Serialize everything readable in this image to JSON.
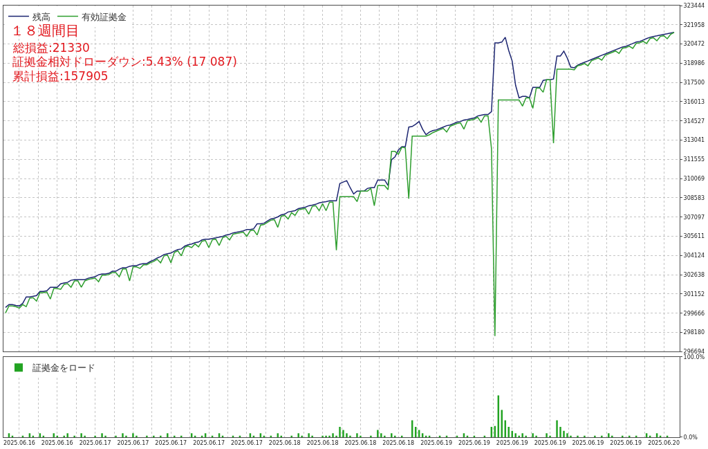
{
  "chart_data": [
    {
      "type": "line",
      "title": "１８週間目",
      "annotations": [
        "総損益:21330",
        "証拠金相対ドローダウン:5.43% (17 087)",
        "累計損益:157905"
      ],
      "categories": [
        null,
        null,
        null,
        null,
        "2025.06.16",
        null,
        null,
        null,
        null,
        null,
        null,
        null,
        null,
        null,
        null,
        "2025.06.16",
        null,
        null,
        null,
        null,
        null,
        null,
        null,
        null,
        null,
        null,
        "2025.06.17",
        null,
        null,
        null,
        null,
        null,
        null,
        null,
        null,
        null,
        null,
        "2025.06.17",
        null,
        null,
        null,
        null,
        null,
        null,
        null,
        null,
        null,
        null,
        "2025.06.17",
        null,
        null,
        null,
        null,
        null,
        null,
        null,
        null,
        null,
        null,
        "2025.06.17",
        null,
        null,
        null,
        null,
        null,
        null,
        null,
        null,
        null,
        null,
        "2025.06.17",
        null,
        null,
        null,
        null,
        null,
        null,
        null,
        null,
        null,
        null,
        "2025.06.18",
        null,
        null,
        null,
        null,
        null,
        null,
        null,
        null,
        null,
        null,
        "2025.06.18",
        null,
        null,
        null,
        null,
        null,
        null,
        null,
        null,
        null,
        null,
        "2025.06.18",
        null,
        null,
        null,
        null,
        null,
        null,
        null,
        null,
        null,
        null,
        "2025.06.18",
        null,
        null,
        null,
        null,
        null,
        null,
        null,
        null,
        null,
        null,
        "2025.06.19",
        null,
        null,
        null,
        null,
        null,
        null,
        null,
        null,
        null,
        null,
        "2025.06.19",
        null,
        null,
        null,
        null,
        null,
        null,
        null,
        null,
        null,
        null,
        "2025.06.19",
        null,
        null,
        null,
        null,
        null,
        null,
        null,
        null,
        null,
        null,
        "2025.06.19",
        null,
        null,
        null,
        null,
        null,
        null,
        null,
        null,
        null,
        null,
        "2025.06.19",
        null,
        null,
        null,
        null,
        null,
        null,
        null,
        null,
        null,
        null,
        "2025.06.19",
        null,
        null,
        null,
        null,
        null,
        null,
        null,
        null,
        null,
        null,
        "2025.06.20",
        null,
        null,
        null
      ],
      "series": [
        {
          "name": "残高",
          "color": "#1b2470",
          "values": [
            300110,
            300330,
            300330,
            300270,
            300220,
            300430,
            300920,
            300920,
            300970,
            301030,
            301350,
            301350,
            301400,
            301670,
            301670,
            301670,
            301940,
            302000,
            302050,
            302210,
            302260,
            302260,
            302260,
            302260,
            302370,
            302430,
            302480,
            302640,
            302700,
            302700,
            302750,
            302910,
            302910,
            303070,
            303180,
            303180,
            303290,
            303340,
            303340,
            303450,
            303500,
            303500,
            303660,
            303770,
            303930,
            304040,
            304200,
            304260,
            304310,
            304470,
            304580,
            304630,
            304850,
            304960,
            305010,
            305120,
            305170,
            305330,
            305390,
            305390,
            305440,
            305490,
            305550,
            305600,
            305710,
            305760,
            305870,
            305920,
            305980,
            306030,
            306140,
            306140,
            306190,
            306570,
            306570,
            306620,
            306790,
            306950,
            307000,
            307110,
            307270,
            307320,
            307490,
            307540,
            307590,
            307750,
            307810,
            307860,
            307970,
            308020,
            308080,
            308190,
            308240,
            308290,
            308350,
            308350,
            308350,
            309690,
            309800,
            309910,
            309370,
            308880,
            309100,
            309100,
            309100,
            309310,
            309370,
            309370,
            309960,
            309960,
            309960,
            309530,
            311520,
            311740,
            312280,
            312540,
            312540,
            314050,
            314100,
            314270,
            314480,
            313890,
            313460,
            313670,
            313780,
            313840,
            313940,
            314050,
            314160,
            314210,
            314320,
            314430,
            314480,
            314590,
            314640,
            314700,
            314750,
            314910,
            314970,
            315020,
            315020,
            315240,
            320560,
            320560,
            320620,
            320990,
            319970,
            319160,
            317280,
            316310,
            316420,
            316420,
            316310,
            317120,
            317120,
            317120,
            317660,
            317710,
            317710,
            317770,
            319540,
            319540,
            319920,
            319380,
            318680,
            318630,
            318840,
            318950,
            319060,
            319160,
            319270,
            319380,
            319490,
            319600,
            319700,
            319810,
            319920,
            320030,
            320130,
            320240,
            320290,
            320400,
            320510,
            320620,
            320670,
            320780,
            320890,
            320990,
            321050,
            321100,
            321160,
            321210,
            321260,
            321320,
            321370
          ]
        },
        {
          "name": "有効証拠金",
          "color": "#2e9e2e",
          "values": [
            299680,
            300230,
            300230,
            300170,
            300060,
            300330,
            300170,
            300820,
            300870,
            300600,
            301250,
            301250,
            301300,
            300760,
            301570,
            301570,
            301510,
            301900,
            301950,
            301670,
            302160,
            302160,
            301670,
            302160,
            302270,
            302330,
            302380,
            302100,
            302600,
            302600,
            302650,
            302810,
            302810,
            302480,
            303080,
            303080,
            302160,
            303240,
            303240,
            303130,
            303400,
            303400,
            303560,
            303670,
            303830,
            303560,
            304100,
            304160,
            303560,
            304370,
            304480,
            304100,
            304750,
            304860,
            304740,
            305020,
            304790,
            305230,
            305290,
            304740,
            305340,
            305390,
            304900,
            305500,
            305610,
            305330,
            305770,
            305820,
            305880,
            305930,
            305600,
            306040,
            306090,
            305710,
            306470,
            306520,
            306690,
            306850,
            306900,
            306300,
            307170,
            307220,
            306950,
            307440,
            307220,
            307650,
            307710,
            307760,
            307320,
            307920,
            307980,
            307590,
            308140,
            307590,
            308250,
            308250,
            304530,
            308670,
            308670,
            308670,
            308670,
            308670,
            308290,
            309100,
            309100,
            309100,
            309310,
            307970,
            309530,
            309530,
            309530,
            309210,
            312170,
            312170,
            311950,
            312490,
            312440,
            308510,
            313350,
            313350,
            313350,
            313350,
            313350,
            313460,
            313620,
            313740,
            313840,
            313950,
            313670,
            314110,
            314220,
            314330,
            314380,
            313890,
            314540,
            314600,
            314650,
            314810,
            314430,
            314920,
            314920,
            312380,
            297900,
            316150,
            316150,
            316150,
            316150,
            316150,
            316150,
            316150,
            315670,
            316310,
            316310,
            315500,
            317070,
            317070,
            316740,
            317710,
            317710,
            312810,
            318520,
            318520,
            318520,
            318520,
            318520,
            318470,
            318790,
            318850,
            318960,
            318780,
            319170,
            319280,
            319390,
            319220,
            319600,
            319710,
            319820,
            319930,
            319750,
            320140,
            320190,
            320300,
            320130,
            320520,
            320570,
            320680,
            320510,
            320890,
            320950,
            320720,
            321060,
            321110,
            320880,
            321220,
            321370
          ]
        }
      ],
      "ylim": [
        296694,
        323444
      ],
      "yticks": [
        296694,
        298180,
        299666,
        301152,
        302638,
        304124,
        305611,
        307097,
        308583,
        310069,
        311555,
        313041,
        314527,
        316013,
        317500,
        318986,
        320472,
        321958,
        323444
      ],
      "grid": true,
      "legend": "top left",
      "tick_labels": "y"
    },
    {
      "type": "bar",
      "categories": [
        null,
        null,
        null,
        null,
        "2025.06.16",
        null,
        null,
        null,
        null,
        null,
        null,
        null,
        null,
        null,
        null,
        "2025.06.16",
        null,
        null,
        null,
        null,
        null,
        null,
        null,
        null,
        null,
        null,
        "2025.06.17",
        null,
        null,
        null,
        null,
        null,
        null,
        null,
        null,
        null,
        null,
        "2025.06.17",
        null,
        null,
        null,
        null,
        null,
        null,
        null,
        null,
        null,
        null,
        "2025.06.17",
        null,
        null,
        null,
        null,
        null,
        null,
        null,
        null,
        null,
        null,
        "2025.06.17",
        null,
        null,
        null,
        null,
        null,
        null,
        null,
        null,
        null,
        null,
        "2025.06.17",
        null,
        null,
        null,
        null,
        null,
        null,
        null,
        null,
        null,
        null,
        "2025.06.18",
        null,
        null,
        null,
        null,
        null,
        null,
        null,
        null,
        null,
        null,
        "2025.06.18",
        null,
        null,
        null,
        null,
        null,
        null,
        null,
        null,
        null,
        null,
        "2025.06.18",
        null,
        null,
        null,
        null,
        null,
        null,
        null,
        null,
        null,
        null,
        "2025.06.18",
        null,
        null,
        null,
        null,
        null,
        null,
        null,
        null,
        null,
        null,
        "2025.06.19",
        null,
        null,
        null,
        null,
        null,
        null,
        null,
        null,
        null,
        null,
        "2025.06.19",
        null,
        null,
        null,
        null,
        null,
        null,
        null,
        null,
        null,
        null,
        "2025.06.19",
        null,
        null,
        null,
        null,
        null,
        null,
        null,
        null,
        null,
        null,
        "2025.06.19",
        null,
        null,
        null,
        null,
        null,
        null,
        null,
        null,
        null,
        null,
        "2025.06.19",
        null,
        null,
        null,
        null,
        null,
        null,
        null,
        null,
        null,
        null,
        "2025.06.19",
        null,
        null,
        null,
        null,
        null,
        null,
        null,
        null,
        null,
        null,
        "2025.06.20",
        null,
        null,
        null
      ],
      "series": [
        {
          "name": "証拠金をロード",
          "color": "#22a322",
          "values": [
            null,
            5,
            2,
            null,
            null,
            2,
            null,
            5,
            2,
            null,
            5,
            2,
            null,
            null,
            5,
            2,
            null,
            2,
            5,
            null,
            2,
            null,
            5,
            2,
            null,
            null,
            2,
            null,
            5,
            2,
            null,
            null,
            2,
            null,
            5,
            2,
            null,
            5,
            2,
            null,
            null,
            2,
            null,
            2,
            null,
            2,
            null,
            5,
            null,
            2,
            null,
            2,
            null,
            null,
            5,
            2,
            null,
            2,
            5,
            null,
            2,
            null,
            5,
            2,
            null,
            null,
            2,
            null,
            2,
            null,
            null,
            5,
            2,
            null,
            5,
            2,
            null,
            2,
            null,
            5,
            2,
            null,
            null,
            2,
            null,
            5,
            2,
            null,
            5,
            2,
            null,
            null,
            2,
            2,
            2,
            5,
            2,
            13,
            9,
            5,
            2,
            null,
            5,
            2,
            null,
            null,
            2,
            null,
            9,
            5,
            2,
            null,
            5,
            2,
            null,
            2,
            null,
            null,
            21,
            13,
            9,
            5,
            2,
            2,
            null,
            null,
            2,
            null,
            2,
            null,
            null,
            2,
            null,
            5,
            2,
            null,
            2,
            null,
            null,
            2,
            null,
            13,
            14,
            52,
            34,
            21,
            13,
            8,
            5,
            2,
            5,
            2,
            null,
            5,
            2,
            null,
            null,
            5,
            2,
            null,
            21,
            13,
            8,
            5,
            2,
            null,
            2,
            null,
            2,
            null,
            null,
            2,
            null,
            2,
            null,
            5,
            2,
            null,
            null,
            2,
            null,
            2,
            null,
            2,
            null,
            null,
            5,
            2,
            null,
            5,
            2,
            null,
            2,
            null,
            null
          ]
        }
      ],
      "ylim": [
        0,
        100
      ],
      "yticks": [
        {
          "value": 0,
          "label": "0.0%"
        },
        {
          "value": 100,
          "label": "100.0%"
        }
      ],
      "grid": "x",
      "legend": "top left"
    }
  ]
}
